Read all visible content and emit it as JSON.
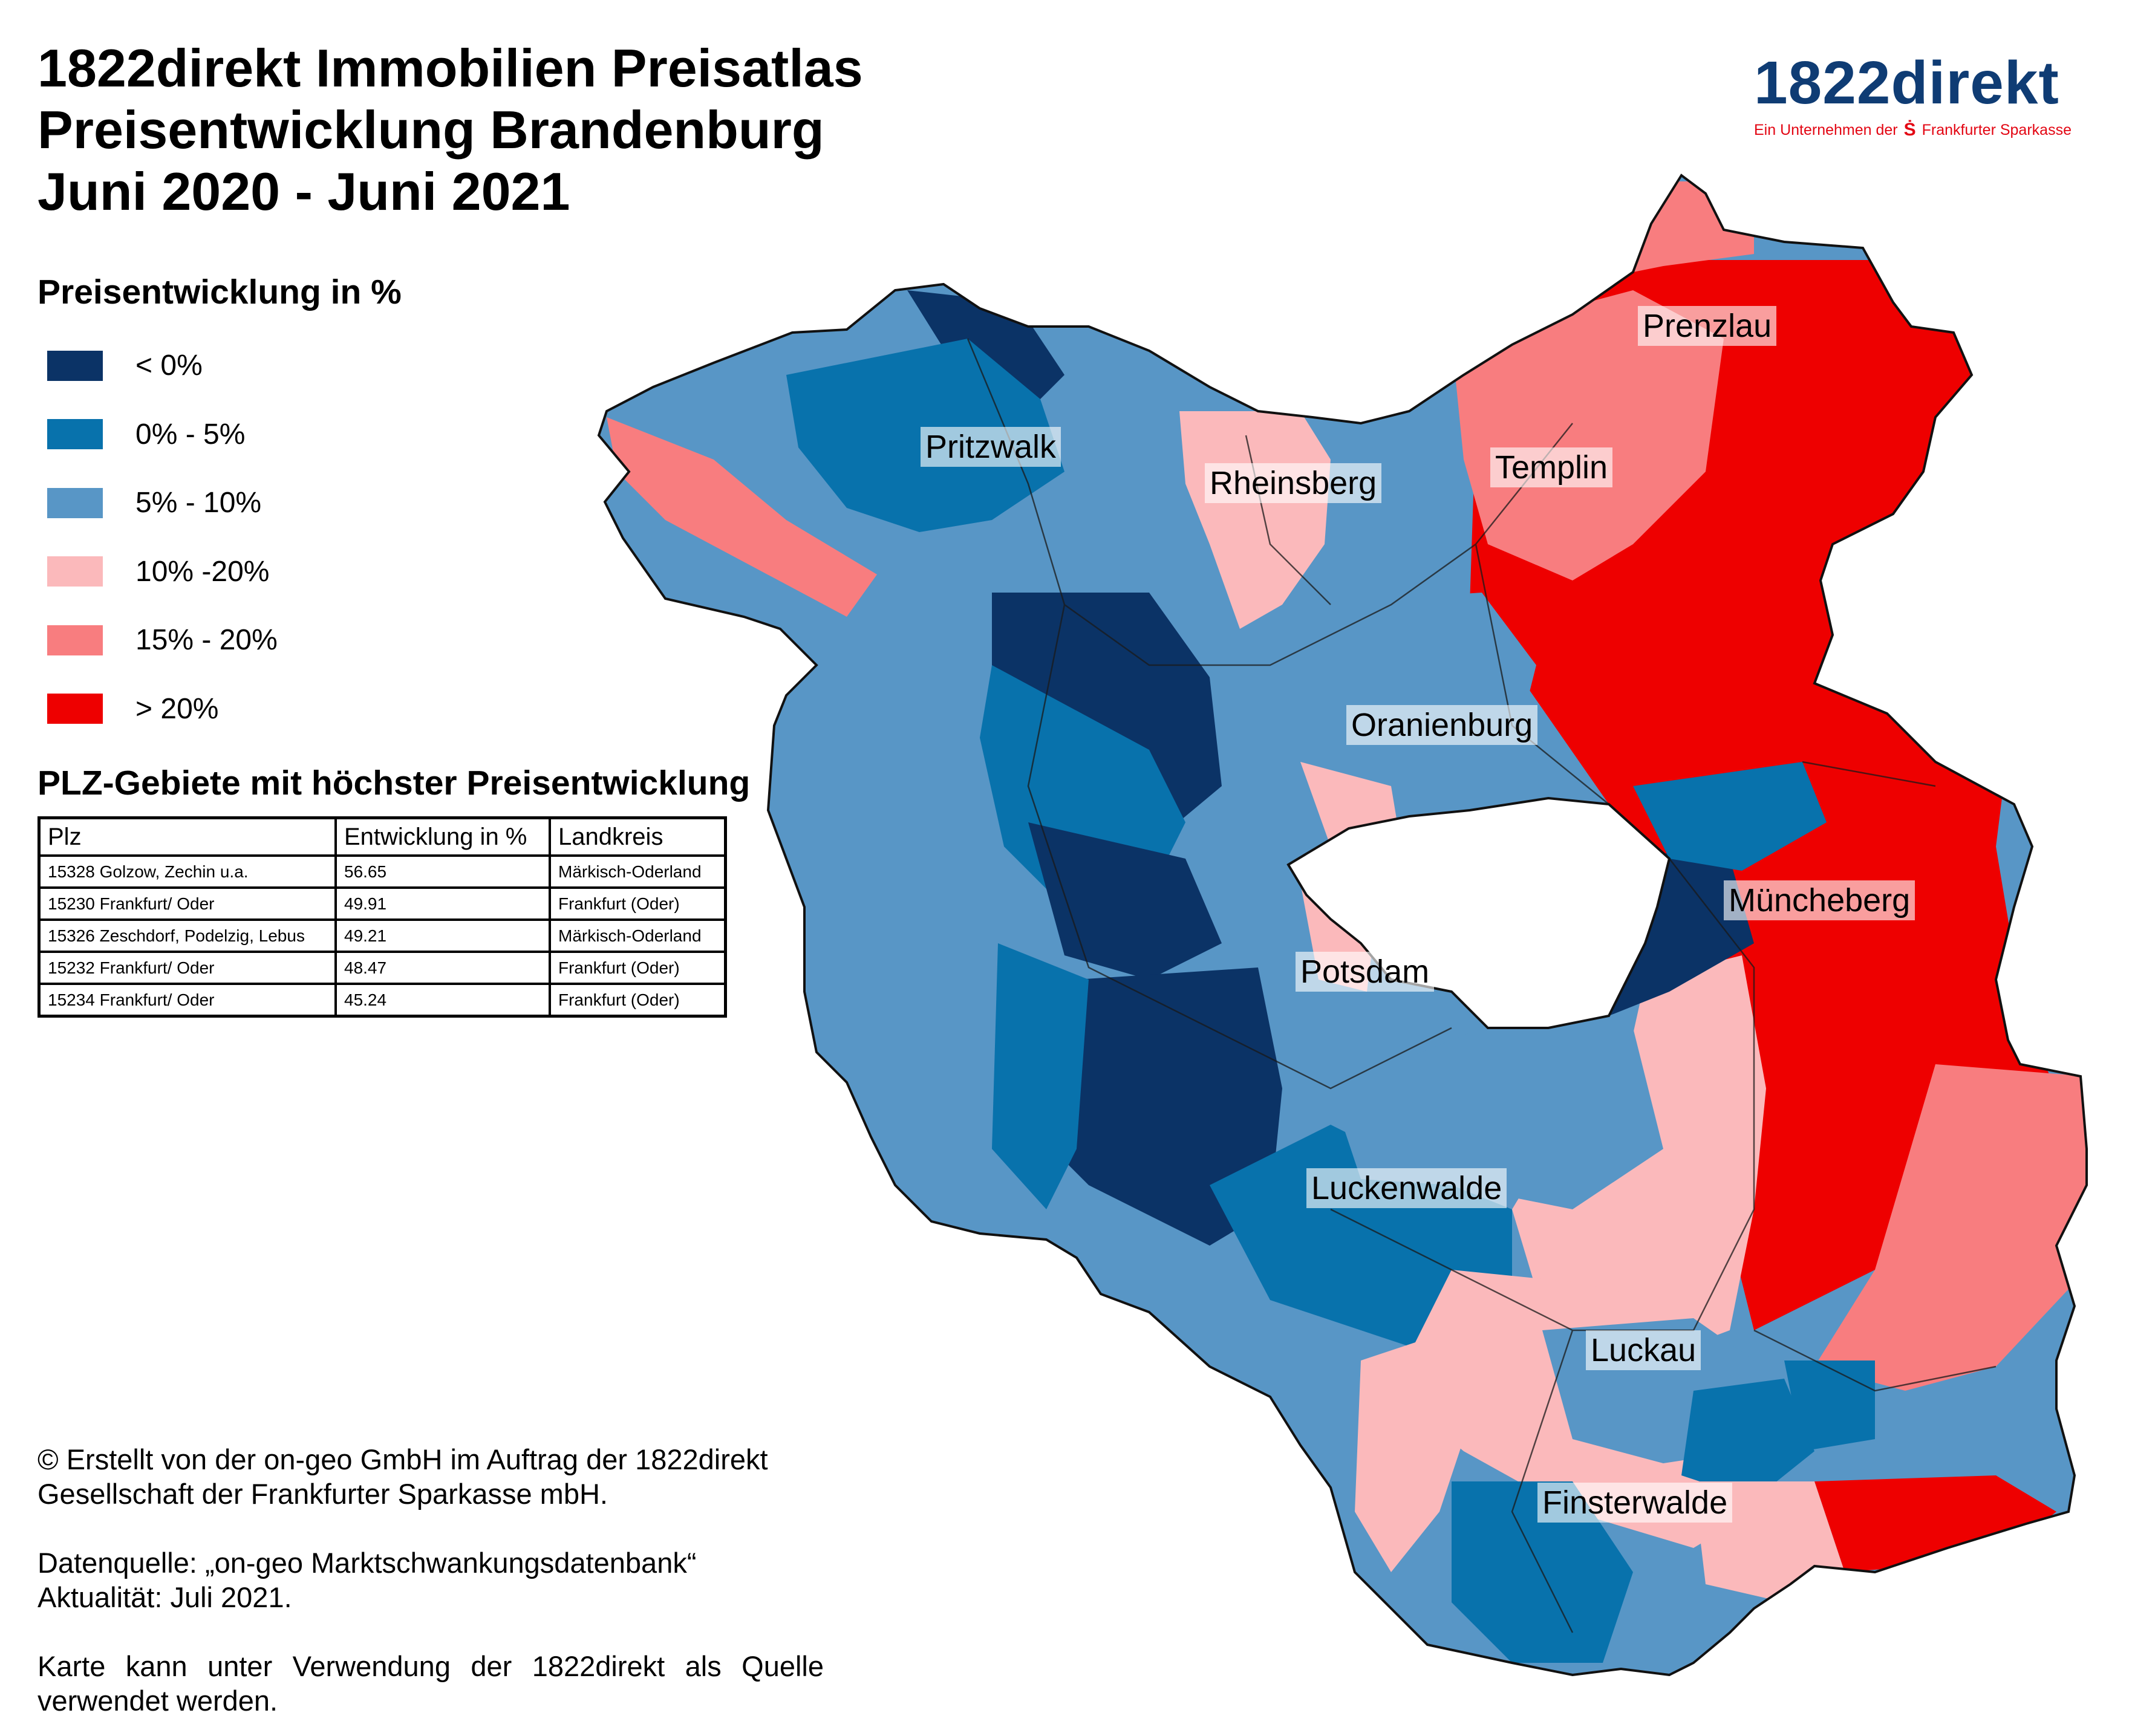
{
  "title": {
    "line1": "1822direkt Immobilien Preisatlas",
    "line2": "Preisentwicklung Brandenburg",
    "line3": "Juni 2020 - Juni 2021"
  },
  "logo": {
    "word": "1822direkt",
    "tagline_pre": "Ein Unternehmen der",
    "tagline_post": "Frankfurter Sparkasse",
    "icon": "sparkasse-s-icon",
    "color": "#0f3c74",
    "accent": "#e30613"
  },
  "legend": {
    "title": "Preisentwicklung in %",
    "items": [
      {
        "label": "< 0%",
        "color": "#0b3366"
      },
      {
        "label": "0% - 5%",
        "color": "#0872ac"
      },
      {
        "label": "5% - 10%",
        "color": "#5896c6"
      },
      {
        "label": "10% -20%",
        "color": "#fbb9bb"
      },
      {
        "label": "15% - 20%",
        "color": "#f87d7f"
      },
      {
        "label": "> 20%",
        "color": "#ee0000"
      }
    ]
  },
  "table": {
    "title": "PLZ-Gebiete mit höchster Preisentwicklung",
    "headers": [
      "Plz",
      "Entwicklung in %",
      "Landkreis"
    ],
    "rows": [
      [
        "15328 Golzow, Zechin u.a.",
        "56.65",
        "Märkisch-Oderland"
      ],
      [
        "15230 Frankfurt/ Oder",
        "49.91",
        "Frankfurt (Oder)"
      ],
      [
        "15326 Zeschdorf, Podelzig, Lebus",
        "49.21",
        "Märkisch-Oderland"
      ],
      [
        "15232 Frankfurt/ Oder",
        "48.47",
        "Frankfurt (Oder)"
      ],
      [
        "15234 Frankfurt/ Oder",
        "45.24",
        "Frankfurt (Oder)"
      ]
    ]
  },
  "credits": {
    "line1": "© Erstellt von der on-geo GmbH im Auftrag der 1822direkt",
    "line2": "Gesellschaft der Frankfurter Sparkasse mbH.",
    "line3": "Datenquelle: „on-geo Marktschwankungsdatenbank“",
    "line4": "Aktualität: Juli 2021.",
    "line5": "Karte kann unter Verwendung der 1822direkt als Quelle",
    "line6": "verwendet werden."
  },
  "cities": {
    "prenzlau": "Prenzlau",
    "pritzwalk": "Pritzwalk",
    "rheinsberg": "Rheinsberg",
    "templin": "Templin",
    "oranienburg": "Oranienburg",
    "muencheberg": "Müncheberg",
    "potsdam": "Potsdam",
    "luckenwalde": "Luckenwalde",
    "luckau": "Luckau",
    "finsterwalde": "Finsterwalde"
  },
  "map_classes": {
    "lt0": "#0b3366",
    "p0_5": "#0872ac",
    "p5_10": "#5896c6",
    "p10_20": "#fbb9bb",
    "p15_20": "#f87d7f",
    "gt20": "#ee0000"
  }
}
